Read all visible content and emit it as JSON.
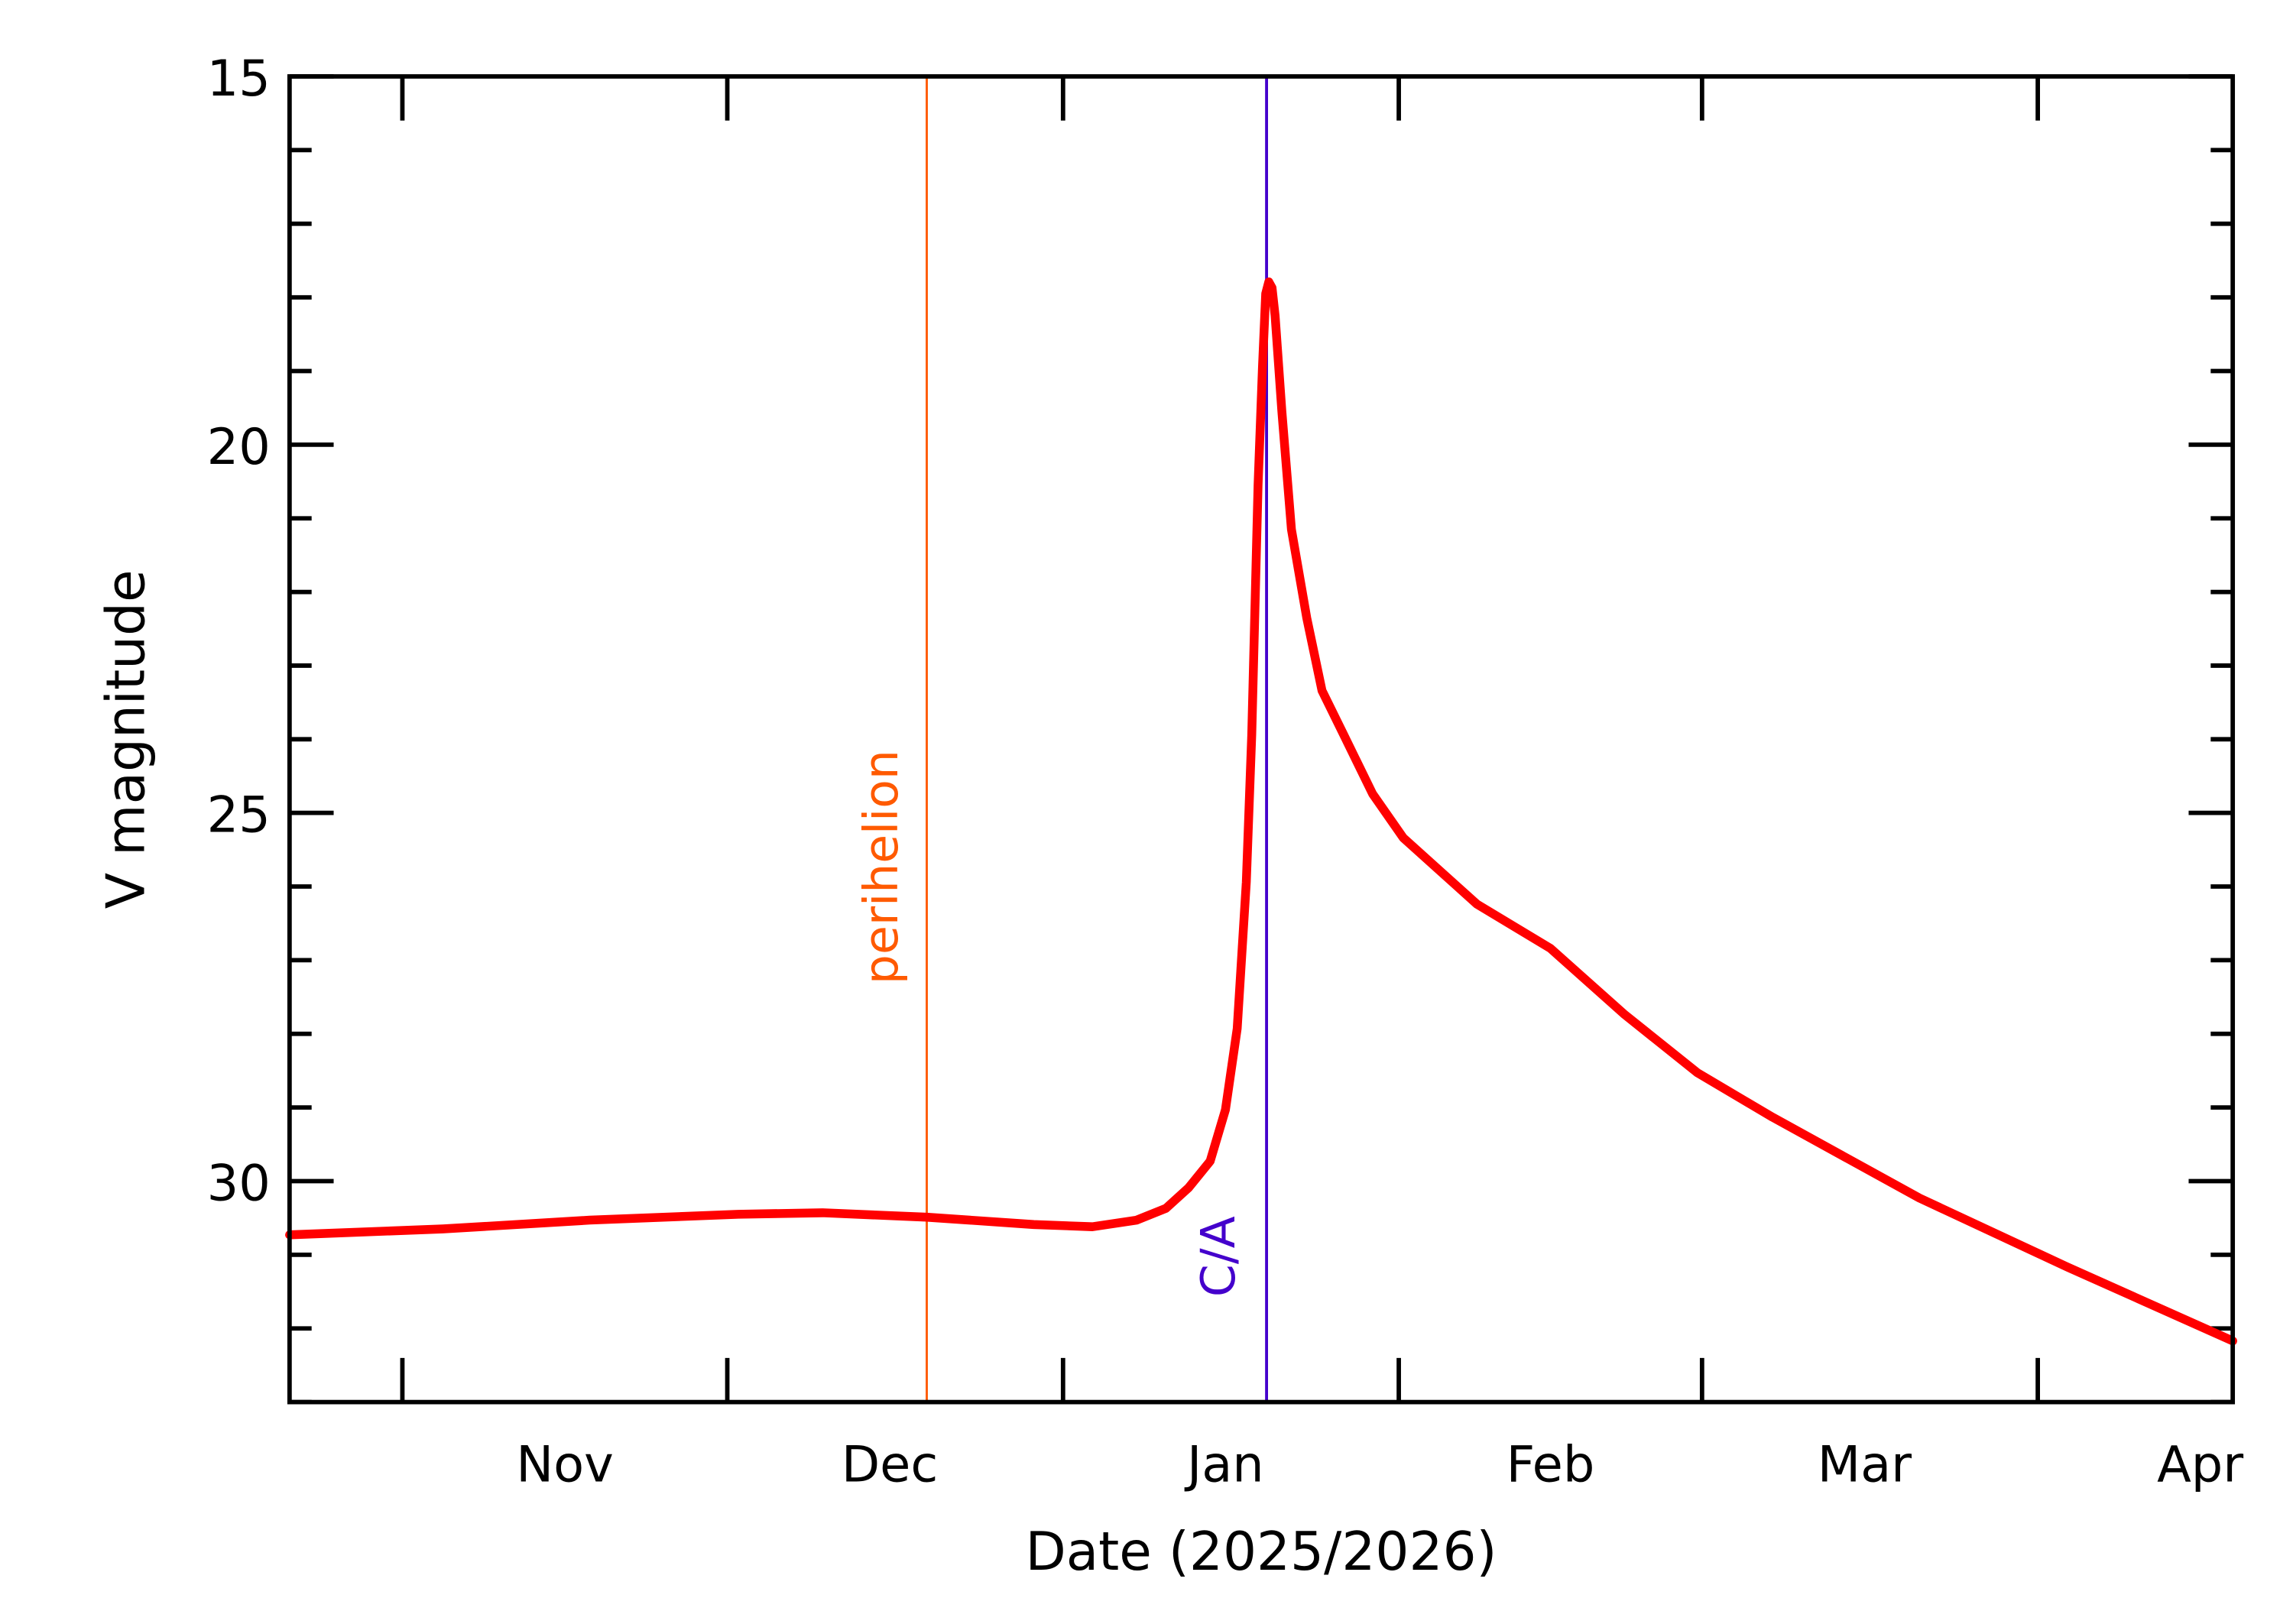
{
  "chart_data": {
    "type": "line",
    "title": "",
    "xlabel": "Date (2025/2026)",
    "ylabel": "V magnitude",
    "xlim": [
      "2025-10-21T14:00",
      "2026-04-19T00:00"
    ],
    "ylim": [
      33,
      15
    ],
    "y_inverted": true,
    "grid": false,
    "legend": "none",
    "y_ticks": [
      15,
      20,
      25,
      30
    ],
    "y_tick_labels": [
      "15",
      "20",
      "25",
      "30"
    ],
    "y_minor_step": 1,
    "x_major_ticks": [
      "2025-11-01",
      "2025-12-01",
      "2026-01-01",
      "2026-02-01",
      "2026-03-01",
      "2026-04-01"
    ],
    "x_tick_labels": [
      {
        "label": "Nov",
        "at": "2025-11-16"
      },
      {
        "label": "Dec",
        "at": "2025-12-16"
      },
      {
        "label": "Jan",
        "at": "2026-01-16"
      },
      {
        "label": "Feb",
        "at": "2026-02-15"
      },
      {
        "label": "Mar",
        "at": "2026-03-16"
      },
      {
        "label": "Apr",
        "at": "2026-04-16"
      }
    ],
    "series": [
      {
        "color": "#ff0000",
        "x": [
          "2025-10-21T14:00",
          "2025-11-04T17:00",
          "2025-11-18T07:00",
          "2025-12-02T00:00",
          "2025-12-09T19:00",
          "2025-12-19T10:00",
          "2025-12-29T07:00",
          "2026-01-03T17:00",
          "2026-01-07T19:00",
          "2026-01-10T12:00",
          "2026-01-12T14:00",
          "2026-01-14T14:00",
          "2026-01-16T00:00",
          "2026-01-17T02:00",
          "2026-01-17T22:00",
          "2026-01-18T10:00",
          "2026-01-19T00:00",
          "2026-01-19T10:00",
          "2026-01-19T17:00",
          "2026-01-20T00:00",
          "2026-01-20T07:00",
          "2026-01-20T14:00",
          "2026-01-21T05:00",
          "2026-01-22T02:00",
          "2026-01-23T12:00",
          "2026-01-24T22:00",
          "2026-01-26T22:00",
          "2026-01-29T14:00",
          "2026-02-01T10:00",
          "2026-02-08T05:00",
          "2026-02-15T00:00",
          "2026-02-21T19:00",
          "2026-02-28T14:00",
          "2026-03-07T12:00",
          "2026-03-21T02:00",
          "2026-04-03T19:00",
          "2026-04-19T00:00"
        ],
        "y": [
          30.73,
          30.65,
          30.53,
          30.45,
          30.43,
          30.49,
          30.59,
          30.62,
          30.53,
          30.37,
          30.09,
          29.73,
          29.03,
          27.93,
          25.94,
          23.94,
          20.55,
          18.95,
          17.95,
          17.79,
          17.87,
          18.25,
          19.55,
          21.15,
          22.35,
          23.34,
          23.94,
          24.74,
          25.34,
          26.24,
          26.84,
          27.73,
          28.53,
          29.13,
          30.23,
          31.17,
          32.17
        ]
      }
    ],
    "annotations": [
      {
        "label": "perihelion",
        "date": "2025-12-19T10:00",
        "color": "#ff5a00"
      },
      {
        "label": "C/A",
        "date": "2026-01-19T19:00",
        "color": "#4400cc"
      }
    ]
  }
}
